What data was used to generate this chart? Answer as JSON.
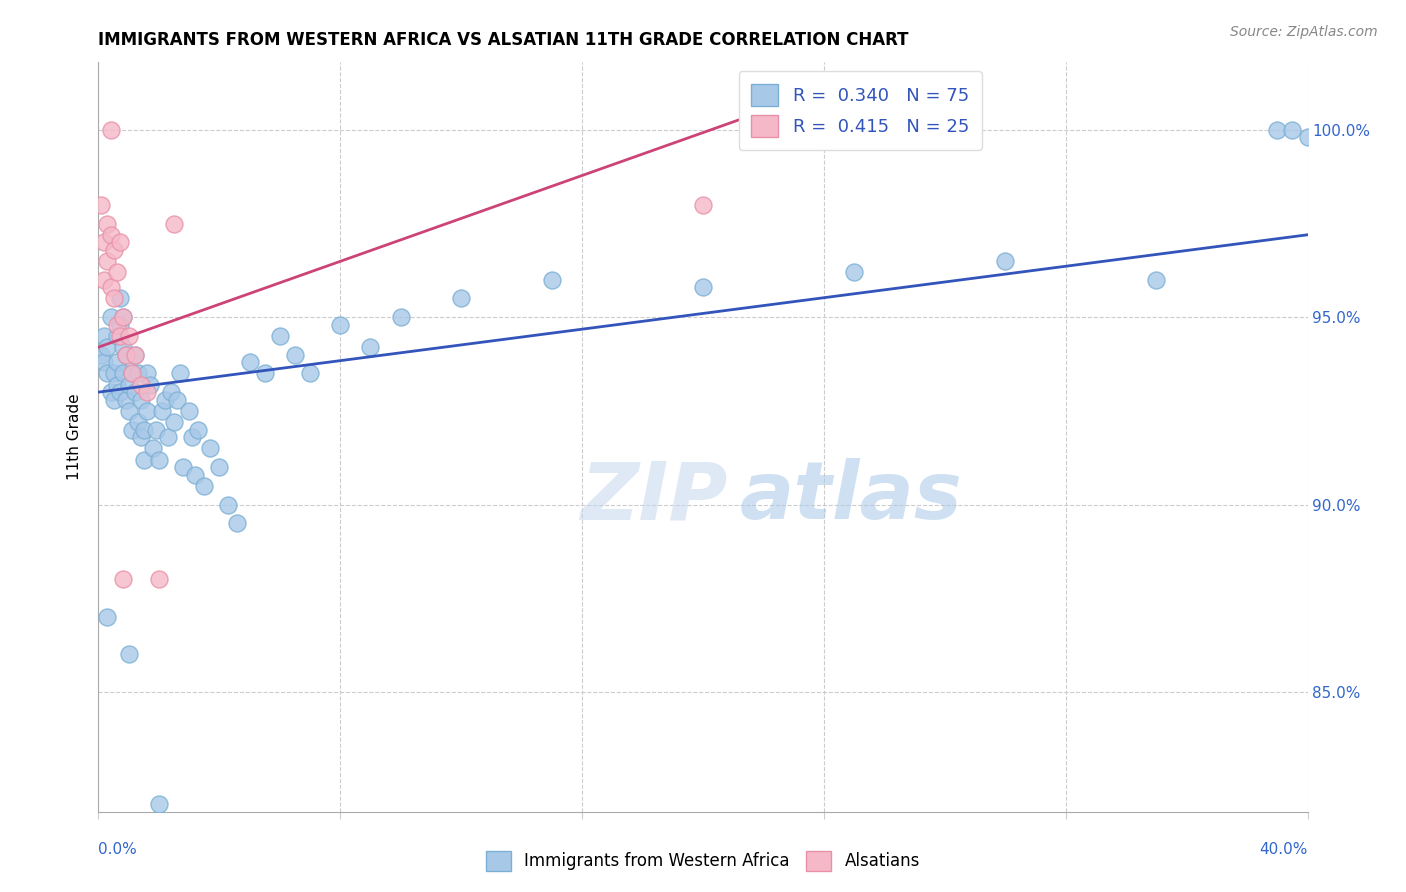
{
  "title": "IMMIGRANTS FROM WESTERN AFRICA VS ALSATIAN 11TH GRADE CORRELATION CHART",
  "source": "Source: ZipAtlas.com",
  "ylabel": "11th Grade",
  "ytick_vals": [
    0.85,
    0.9,
    0.95,
    1.0
  ],
  "ytick_labels": [
    "85.0%",
    "90.0%",
    "95.0%",
    "100.0%"
  ],
  "xmin": 0.0,
  "xmax": 0.4,
  "ymin": 0.818,
  "ymax": 1.018,
  "blue_R": 0.34,
  "blue_N": 75,
  "pink_R": 0.415,
  "pink_N": 25,
  "blue_color": "#a8c8e8",
  "pink_color": "#f5b8c8",
  "blue_edge_color": "#7bafd4",
  "pink_edge_color": "#e890a8",
  "blue_line_color": "#3355bb",
  "pink_line_color": "#cc4477",
  "legend_label_blue": "Immigrants from Western Africa",
  "legend_label_pink": "Alsatians",
  "watermark_zip": "ZIP",
  "watermark_atlas": "atlas",
  "blue_line_x0": 0.0,
  "blue_line_y0": 0.93,
  "blue_line_x1": 0.4,
  "blue_line_y1": 0.972,
  "pink_line_x0": 0.0,
  "pink_line_y0": 0.942,
  "pink_line_x1": 0.22,
  "pink_line_y1": 1.005,
  "blue_scatter_x": [
    0.001,
    0.002,
    0.002,
    0.003,
    0.003,
    0.004,
    0.004,
    0.005,
    0.005,
    0.006,
    0.006,
    0.006,
    0.007,
    0.007,
    0.007,
    0.008,
    0.008,
    0.008,
    0.009,
    0.009,
    0.01,
    0.01,
    0.011,
    0.011,
    0.012,
    0.012,
    0.013,
    0.013,
    0.014,
    0.014,
    0.015,
    0.015,
    0.016,
    0.016,
    0.017,
    0.018,
    0.019,
    0.02,
    0.021,
    0.022,
    0.023,
    0.024,
    0.025,
    0.026,
    0.027,
    0.028,
    0.03,
    0.031,
    0.032,
    0.033,
    0.035,
    0.037,
    0.04,
    0.043,
    0.046,
    0.05,
    0.055,
    0.06,
    0.065,
    0.07,
    0.08,
    0.09,
    0.1,
    0.12,
    0.15,
    0.2,
    0.25,
    0.3,
    0.35,
    0.39,
    0.395,
    0.4,
    0.003,
    0.01,
    0.02
  ],
  "blue_scatter_y": [
    0.94,
    0.945,
    0.938,
    0.935,
    0.942,
    0.93,
    0.95,
    0.928,
    0.935,
    0.945,
    0.932,
    0.938,
    0.948,
    0.955,
    0.93,
    0.942,
    0.935,
    0.95,
    0.928,
    0.94,
    0.925,
    0.932,
    0.935,
    0.92,
    0.93,
    0.94,
    0.922,
    0.935,
    0.928,
    0.918,
    0.912,
    0.92,
    0.925,
    0.935,
    0.932,
    0.915,
    0.92,
    0.912,
    0.925,
    0.928,
    0.918,
    0.93,
    0.922,
    0.928,
    0.935,
    0.91,
    0.925,
    0.918,
    0.908,
    0.92,
    0.905,
    0.915,
    0.91,
    0.9,
    0.895,
    0.938,
    0.935,
    0.945,
    0.94,
    0.935,
    0.948,
    0.942,
    0.95,
    0.955,
    0.96,
    0.958,
    0.962,
    0.965,
    0.96,
    1.0,
    1.0,
    0.998,
    0.87,
    0.86,
    0.82
  ],
  "pink_scatter_x": [
    0.001,
    0.002,
    0.002,
    0.003,
    0.003,
    0.004,
    0.004,
    0.005,
    0.005,
    0.006,
    0.006,
    0.007,
    0.007,
    0.008,
    0.009,
    0.01,
    0.011,
    0.012,
    0.014,
    0.016,
    0.02,
    0.025,
    0.2,
    0.004,
    0.008
  ],
  "pink_scatter_y": [
    0.98,
    0.97,
    0.96,
    0.975,
    0.965,
    0.972,
    0.958,
    0.968,
    0.955,
    0.962,
    0.948,
    0.97,
    0.945,
    0.95,
    0.94,
    0.945,
    0.935,
    0.94,
    0.932,
    0.93,
    0.88,
    0.975,
    0.98,
    1.0,
    0.88
  ]
}
